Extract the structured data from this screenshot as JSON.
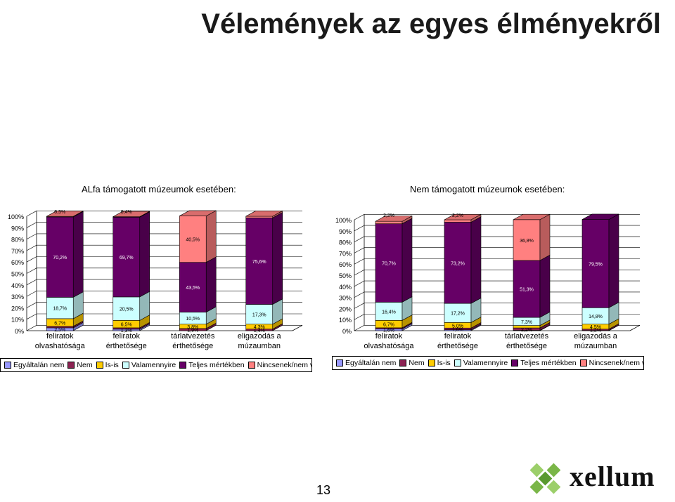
{
  "title": "Vélemények az egyes élményekről",
  "page_number": "13",
  "logo_text": "xellum",
  "colors": {
    "Egyáltalán nem": "#9999ff",
    "Nem": "#8b2252",
    "Is-is": "#ffcc00",
    "Valamennyire": "#ccffff",
    "Teljes mértékben": "#660066",
    "Nincsenek/nem volt": "#ff8080"
  },
  "chart_data": [
    {
      "type": "bar",
      "stacked": true,
      "title": "ALfa támogatott múzeumok esetében:",
      "categories": [
        [
          "feliratok",
          "olvashatósága"
        ],
        [
          "feliratok",
          "érthetősége"
        ],
        [
          "tárlatvezetés",
          "érthetősége"
        ],
        [
          "eligazodás a",
          "múzaumban"
        ]
      ],
      "y_ticks": [
        "0%",
        "10%",
        "20%",
        "30%",
        "40%",
        "50%",
        "60%",
        "70%",
        "80%",
        "90%",
        "100%"
      ],
      "ylim": [
        0,
        100
      ],
      "series": [
        {
          "name": "Egyáltalán nem",
          "values": [
            2.5,
            1.3,
            0,
            0
          ],
          "labels": [
            "2,5%",
            "1,3%",
            "",
            ""
          ]
        },
        {
          "name": "Nem",
          "values": [
            1.3,
            1.2,
            1.9,
            1.4
          ],
          "labels": [
            "",
            "",
            "1,9%",
            "1,4%"
          ]
        },
        {
          "name": "Is-is",
          "values": [
            6.7,
            6.5,
            3.8,
            4.3
          ],
          "labels": [
            "6,7%",
            "6,5%",
            "3,8%",
            "4,3%"
          ]
        },
        {
          "name": "Valamennyire",
          "values": [
            18.7,
            20.5,
            10.5,
            17.3
          ],
          "labels": [
            "18,7%",
            "20,5%",
            "10,5%",
            "17,3%"
          ]
        },
        {
          "name": "Teljes mértékben",
          "values": [
            70.2,
            69.7,
            43.5,
            75.6
          ],
          "labels": [
            "70,2%",
            "69,7%",
            "43,5%",
            "75,6%"
          ]
        },
        {
          "name": "Nincsenek/nem volt",
          "values": [
            0.5,
            0.4,
            40.5,
            1.4
          ],
          "labels": [
            "0,5%",
            "0,4%",
            "40,5%",
            ""
          ]
        }
      ]
    },
    {
      "type": "bar",
      "stacked": true,
      "title": "Nem támogatott múzeumok esetében:",
      "categories": [
        [
          "feliratok",
          "olvashatósága"
        ],
        [
          "feliratok",
          "érthetősége"
        ],
        [
          "tárlatvezetés",
          "érthetősége"
        ],
        [
          "eligazodás a",
          "múzaumban"
        ]
      ],
      "y_ticks": [
        "0%",
        "10%",
        "20%",
        "30%",
        "40%",
        "50%",
        "60%",
        "70%",
        "80%",
        "90%",
        "100%"
      ],
      "ylim": [
        0,
        100
      ],
      "series": [
        {
          "name": "Egyáltalán nem",
          "values": [
            1.6,
            0.8,
            0.3,
            0.2
          ],
          "labels": [
            "1,6%",
            "",
            "",
            ""
          ]
        },
        {
          "name": "Nem",
          "values": [
            1.0,
            1.6,
            2.2,
            1.2
          ],
          "labels": [
            "",
            "1,6%",
            "2,2%",
            "1,2%"
          ]
        },
        {
          "name": "Is-is",
          "values": [
            6.7,
            5.0,
            2.2,
            4.5
          ],
          "labels": [
            "6,7%",
            "5,0%",
            "",
            "4,5%"
          ]
        },
        {
          "name": "Valamennyire",
          "values": [
            16.4,
            17.2,
            7.3,
            14.8
          ],
          "labels": [
            "16,4%",
            "17,2%",
            "7,3%",
            "14,8%"
          ]
        },
        {
          "name": "Teljes mértékben",
          "values": [
            70.7,
            73.2,
            51.3,
            79.5
          ],
          "labels": [
            "70,7%",
            "73,2%",
            "51,3%",
            "79,5%"
          ]
        },
        {
          "name": "Nincsenek/nem volt",
          "values": [
            2.2,
            2.2,
            36.8,
            0
          ],
          "labels": [
            "2,2%",
            "2,2%",
            "36,8%",
            ""
          ]
        }
      ]
    }
  ]
}
